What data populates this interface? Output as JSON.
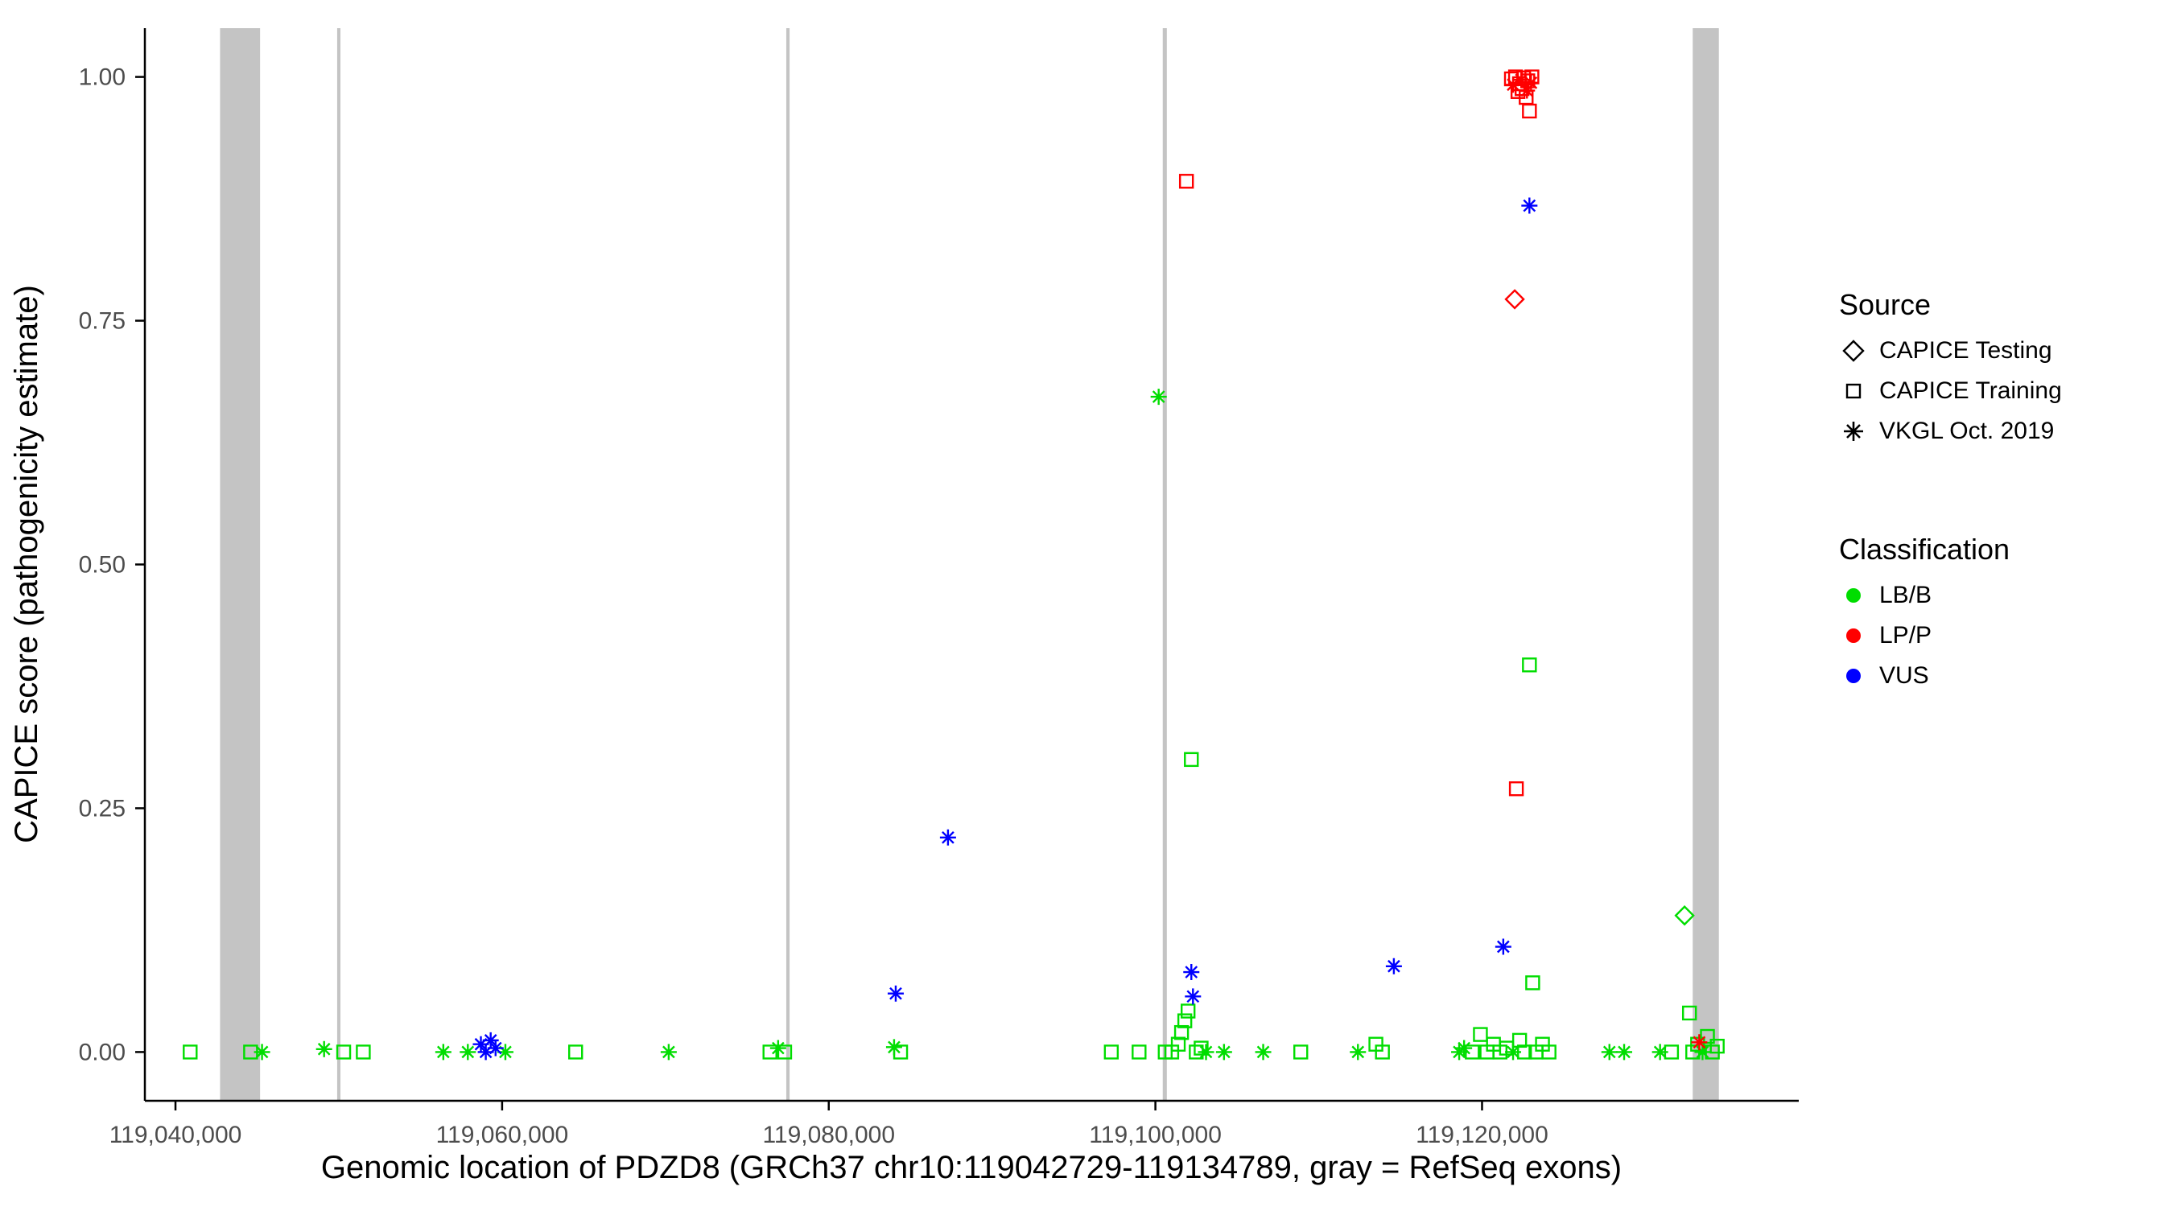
{
  "figure": {
    "background": "#ffffff",
    "axis_color": "#000000",
    "exon_color": "#c4c4c4",
    "tick_text_color": "#4d4d4d"
  },
  "chart_data": {
    "type": "scatter",
    "title": "",
    "xlabel": "Genomic location of PDZD8 (GRCh37 chr10:119042729-119134789, gray = RefSeq exons)",
    "ylabel": "CAPICE score (pathogenicity estimate)",
    "x_domain": [
      119038126,
      119139392
    ],
    "y_domain": [
      -0.05,
      1.05
    ],
    "grid": false,
    "legend_position": "right",
    "x_ticks": [
      {
        "value": 119040000,
        "label": "119,040,000"
      },
      {
        "value": 119060000,
        "label": "119,060,000"
      },
      {
        "value": 119080000,
        "label": "119,080,000"
      },
      {
        "value": 119100000,
        "label": "119,100,000"
      },
      {
        "value": 119120000,
        "label": "119,120,000"
      }
    ],
    "y_ticks": [
      {
        "value": 0.0,
        "label": "0.00"
      },
      {
        "value": 0.25,
        "label": "0.25"
      },
      {
        "value": 0.5,
        "label": "0.50"
      },
      {
        "value": 0.75,
        "label": "0.75"
      },
      {
        "value": 1.0,
        "label": "1.00"
      }
    ],
    "exons": [
      {
        "start": 119042729,
        "end": 119045180
      },
      {
        "start": 119049900,
        "end": 119050100
      },
      {
        "start": 119077400,
        "end": 119077600
      },
      {
        "start": 119100450,
        "end": 119100700
      },
      {
        "start": 119132900,
        "end": 119134500
      }
    ],
    "shapes": {
      "testing": "diamond",
      "training": "square",
      "vkgl": "asterisk"
    },
    "colors": {
      "LB/B": "#00dd00",
      "LP/P": "#ff0000",
      "VUS": "#0000ff"
    },
    "legend": {
      "source": {
        "title": "Source",
        "items": [
          {
            "shape": "diamond",
            "label": "CAPICE Testing"
          },
          {
            "shape": "square",
            "label": "CAPICE Training"
          },
          {
            "shape": "asterisk",
            "label": "VKGL Oct. 2019"
          }
        ]
      },
      "classification": {
        "title": "Classification",
        "items": [
          {
            "color": "#00dd00",
            "label": "LB/B"
          },
          {
            "color": "#ff0000",
            "label": "LP/P"
          },
          {
            "color": "#0000ff",
            "label": "VUS"
          }
        ]
      }
    },
    "points": [
      {
        "x": 119040900,
        "y": 0.0,
        "source": "training",
        "class": "LB/B"
      },
      {
        "x": 119044600,
        "y": 0.0,
        "source": "training",
        "class": "LB/B"
      },
      {
        "x": 119045300,
        "y": 0.0,
        "source": "vkgl",
        "class": "LB/B"
      },
      {
        "x": 119049100,
        "y": 0.003,
        "source": "vkgl",
        "class": "LB/B"
      },
      {
        "x": 119050300,
        "y": 0.0,
        "source": "training",
        "class": "LB/B"
      },
      {
        "x": 119051500,
        "y": 0.0,
        "source": "training",
        "class": "LB/B"
      },
      {
        "x": 119056400,
        "y": 0.0,
        "source": "vkgl",
        "class": "LB/B"
      },
      {
        "x": 119057900,
        "y": 0.0,
        "source": "vkgl",
        "class": "LB/B"
      },
      {
        "x": 119060200,
        "y": 0.0,
        "source": "vkgl",
        "class": "LB/B"
      },
      {
        "x": 119064500,
        "y": 0.0,
        "source": "training",
        "class": "LB/B"
      },
      {
        "x": 119070200,
        "y": 0.0,
        "source": "vkgl",
        "class": "LB/B"
      },
      {
        "x": 119076400,
        "y": 0.0,
        "source": "training",
        "class": "LB/B"
      },
      {
        "x": 119076900,
        "y": 0.004,
        "source": "vkgl",
        "class": "LB/B"
      },
      {
        "x": 119077300,
        "y": 0.0,
        "source": "training",
        "class": "LB/B"
      },
      {
        "x": 119084000,
        "y": 0.005,
        "source": "vkgl",
        "class": "LB/B"
      },
      {
        "x": 119084400,
        "y": 0.0,
        "source": "training",
        "class": "LB/B"
      },
      {
        "x": 119097300,
        "y": 0.0,
        "source": "training",
        "class": "LB/B"
      },
      {
        "x": 119099000,
        "y": 0.0,
        "source": "training",
        "class": "LB/B"
      },
      {
        "x": 119100600,
        "y": 0.0,
        "source": "training",
        "class": "LB/B"
      },
      {
        "x": 119100200,
        "y": 0.672,
        "source": "vkgl",
        "class": "LB/B"
      },
      {
        "x": 119101000,
        "y": 0.0,
        "source": "training",
        "class": "LB/B"
      },
      {
        "x": 119101400,
        "y": 0.008,
        "source": "training",
        "class": "LB/B"
      },
      {
        "x": 119101600,
        "y": 0.02,
        "source": "training",
        "class": "LB/B"
      },
      {
        "x": 119101800,
        "y": 0.032,
        "source": "training",
        "class": "LB/B"
      },
      {
        "x": 119102000,
        "y": 0.042,
        "source": "training",
        "class": "LB/B"
      },
      {
        "x": 119102200,
        "y": 0.3,
        "source": "training",
        "class": "LB/B"
      },
      {
        "x": 119102500,
        "y": 0.0,
        "source": "training",
        "class": "LB/B"
      },
      {
        "x": 119102800,
        "y": 0.004,
        "source": "training",
        "class": "LB/B"
      },
      {
        "x": 119103100,
        "y": 0.0,
        "source": "vkgl",
        "class": "LB/B"
      },
      {
        "x": 119104200,
        "y": 0.0,
        "source": "vkgl",
        "class": "LB/B"
      },
      {
        "x": 119106600,
        "y": 0.0,
        "source": "vkgl",
        "class": "LB/B"
      },
      {
        "x": 119108900,
        "y": 0.0,
        "source": "training",
        "class": "LB/B"
      },
      {
        "x": 119112400,
        "y": 0.0,
        "source": "vkgl",
        "class": "LB/B"
      },
      {
        "x": 119113500,
        "y": 0.008,
        "source": "training",
        "class": "LB/B"
      },
      {
        "x": 119113900,
        "y": 0.0,
        "source": "training",
        "class": "LB/B"
      },
      {
        "x": 119118600,
        "y": 0.0,
        "source": "vkgl",
        "class": "LB/B"
      },
      {
        "x": 119118900,
        "y": 0.004,
        "source": "vkgl",
        "class": "LB/B"
      },
      {
        "x": 119119400,
        "y": 0.0,
        "source": "training",
        "class": "LB/B"
      },
      {
        "x": 119119900,
        "y": 0.018,
        "source": "training",
        "class": "LB/B"
      },
      {
        "x": 119120300,
        "y": 0.0,
        "source": "training",
        "class": "LB/B"
      },
      {
        "x": 119120700,
        "y": 0.008,
        "source": "training",
        "class": "LB/B"
      },
      {
        "x": 119121100,
        "y": 0.0,
        "source": "training",
        "class": "LB/B"
      },
      {
        "x": 119121500,
        "y": 0.004,
        "source": "training",
        "class": "LB/B"
      },
      {
        "x": 119121900,
        "y": 0.0,
        "source": "vkgl",
        "class": "LB/B"
      },
      {
        "x": 119122300,
        "y": 0.012,
        "source": "training",
        "class": "LB/B"
      },
      {
        "x": 119122600,
        "y": 0.0,
        "source": "training",
        "class": "LB/B"
      },
      {
        "x": 119122900,
        "y": 0.397,
        "source": "training",
        "class": "LB/B"
      },
      {
        "x": 119123100,
        "y": 0.071,
        "source": "training",
        "class": "LB/B"
      },
      {
        "x": 119123300,
        "y": 0.0,
        "source": "training",
        "class": "LB/B"
      },
      {
        "x": 119123700,
        "y": 0.008,
        "source": "training",
        "class": "LB/B"
      },
      {
        "x": 119124100,
        "y": 0.0,
        "source": "training",
        "class": "LB/B"
      },
      {
        "x": 119127800,
        "y": 0.0,
        "source": "vkgl",
        "class": "LB/B"
      },
      {
        "x": 119128700,
        "y": 0.0,
        "source": "vkgl",
        "class": "LB/B"
      },
      {
        "x": 119130900,
        "y": 0.0,
        "source": "vkgl",
        "class": "LB/B"
      },
      {
        "x": 119131600,
        "y": 0.0,
        "source": "training",
        "class": "LB/B"
      },
      {
        "x": 119132400,
        "y": 0.14,
        "source": "testing",
        "class": "LB/B"
      },
      {
        "x": 119132700,
        "y": 0.04,
        "source": "training",
        "class": "LB/B"
      },
      {
        "x": 119132900,
        "y": 0.0,
        "source": "training",
        "class": "LB/B"
      },
      {
        "x": 119133200,
        "y": 0.008,
        "source": "training",
        "class": "LB/B"
      },
      {
        "x": 119133500,
        "y": 0.0,
        "source": "vkgl",
        "class": "LB/B"
      },
      {
        "x": 119133800,
        "y": 0.016,
        "source": "training",
        "class": "LB/B"
      },
      {
        "x": 119134100,
        "y": 0.0,
        "source": "training",
        "class": "LB/B"
      },
      {
        "x": 119134400,
        "y": 0.006,
        "source": "training",
        "class": "LB/B"
      },
      {
        "x": 119058700,
        "y": 0.008,
        "source": "vkgl",
        "class": "VUS"
      },
      {
        "x": 119059000,
        "y": 0.0,
        "source": "vkgl",
        "class": "VUS"
      },
      {
        "x": 119059300,
        "y": 0.012,
        "source": "vkgl",
        "class": "VUS"
      },
      {
        "x": 119059600,
        "y": 0.004,
        "source": "vkgl",
        "class": "VUS"
      },
      {
        "x": 119084100,
        "y": 0.06,
        "source": "vkgl",
        "class": "VUS"
      },
      {
        "x": 119087300,
        "y": 0.22,
        "source": "vkgl",
        "class": "VUS"
      },
      {
        "x": 119102200,
        "y": 0.082,
        "source": "vkgl",
        "class": "VUS"
      },
      {
        "x": 119102300,
        "y": 0.057,
        "source": "vkgl",
        "class": "VUS"
      },
      {
        "x": 119114600,
        "y": 0.088,
        "source": "vkgl",
        "class": "VUS"
      },
      {
        "x": 119121300,
        "y": 0.108,
        "source": "vkgl",
        "class": "VUS"
      },
      {
        "x": 119122900,
        "y": 0.868,
        "source": "vkgl",
        "class": "VUS"
      },
      {
        "x": 119101900,
        "y": 0.893,
        "source": "training",
        "class": "LP/P"
      },
      {
        "x": 119122000,
        "y": 0.772,
        "source": "testing",
        "class": "LP/P"
      },
      {
        "x": 119122100,
        "y": 0.27,
        "source": "training",
        "class": "LP/P"
      },
      {
        "x": 119121800,
        "y": 0.998,
        "source": "training",
        "class": "LP/P"
      },
      {
        "x": 119122050,
        "y": 1.0,
        "source": "training",
        "class": "LP/P"
      },
      {
        "x": 119122200,
        "y": 0.985,
        "source": "training",
        "class": "LP/P"
      },
      {
        "x": 119122300,
        "y": 0.993,
        "source": "training",
        "class": "LP/P"
      },
      {
        "x": 119122450,
        "y": 0.988,
        "source": "training",
        "class": "LP/P"
      },
      {
        "x": 119122550,
        "y": 0.999,
        "source": "training",
        "class": "LP/P"
      },
      {
        "x": 119122700,
        "y": 0.979,
        "source": "training",
        "class": "LP/P"
      },
      {
        "x": 119122800,
        "y": 0.996,
        "source": "training",
        "class": "LP/P"
      },
      {
        "x": 119122900,
        "y": 0.965,
        "source": "training",
        "class": "LP/P"
      },
      {
        "x": 119123050,
        "y": 1.0,
        "source": "training",
        "class": "LP/P"
      },
      {
        "x": 119121900,
        "y": 0.992,
        "source": "vkgl",
        "class": "LP/P"
      },
      {
        "x": 119122400,
        "y": 0.997,
        "source": "vkgl",
        "class": "LP/P"
      },
      {
        "x": 119122750,
        "y": 0.986,
        "source": "vkgl",
        "class": "LP/P"
      },
      {
        "x": 119123000,
        "y": 0.994,
        "source": "vkgl",
        "class": "LP/P"
      },
      {
        "x": 119133300,
        "y": 0.01,
        "source": "vkgl",
        "class": "LP/P"
      }
    ]
  }
}
